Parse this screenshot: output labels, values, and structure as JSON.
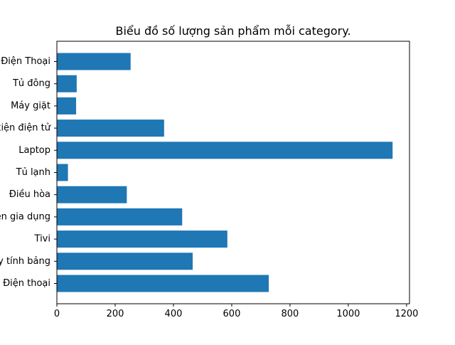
{
  "chart_data": {
    "type": "bar",
    "orientation": "horizontal",
    "title": "Biểu đồ số lượng sản phẩm mỗi category.",
    "xlabel": "",
    "ylabel": "",
    "categories": [
      "Điện Thoại",
      "Tủ đông",
      "Máy giặt",
      "Linh kiện điện tử",
      "Laptop",
      "Tủ lạnh",
      "Điều hòa",
      "Đồ điện gia dụng",
      "Tivi",
      "Máy tính bảng",
      "Điện thoại"
    ],
    "values": [
      253,
      68,
      66,
      368,
      1152,
      38,
      240,
      430,
      585,
      466,
      727
    ],
    "xlim": [
      0,
      1210
    ],
    "xticks": [
      0,
      200,
      400,
      600,
      800,
      1000,
      1200
    ],
    "grid": false,
    "bar_color": "#1f77b4"
  }
}
